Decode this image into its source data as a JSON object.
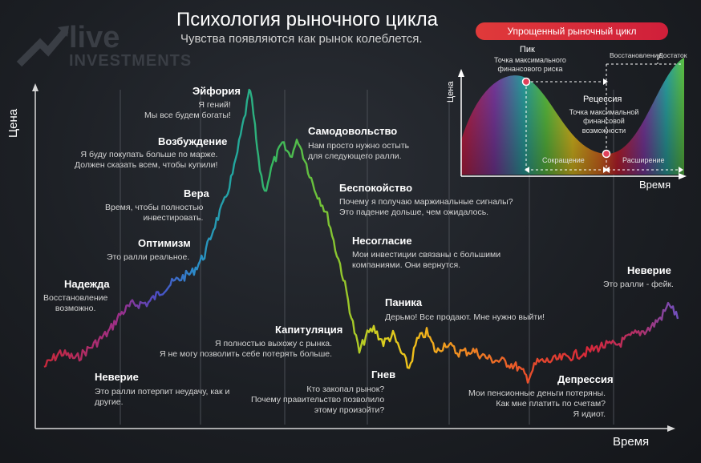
{
  "header": {
    "title": "Психология рыночного цикла",
    "subtitle": "Чувства появляются как рынок колеблется."
  },
  "brand": {
    "line1": "live",
    "line2": "INVESTMENTS"
  },
  "axes": {
    "y_label": "Цена",
    "x_label": "Время"
  },
  "stages": [
    {
      "name": "Неверие",
      "quote": "Это ралли потерпит неудачу, как и\nдругие."
    },
    {
      "name": "Надежда",
      "quote": "Восстановление\nвозможно."
    },
    {
      "name": "Оптимизм",
      "quote": "Это ралли реальное."
    },
    {
      "name": "Вера",
      "quote": "Время, чтобы полностью\nинвестировать."
    },
    {
      "name": "Возбуждение",
      "quote": "Я буду покупать больше по марже.\nДолжен сказать всем, чтобы купили!"
    },
    {
      "name": "Эйфория",
      "quote": "Я гений!\nМы все будем богаты!"
    },
    {
      "name": "Самодовольство",
      "quote": "Нам просто нужно остыть\nдля следующего ралли."
    },
    {
      "name": "Беспокойство",
      "quote": "Почему я получаю маржинальные сигналы?\nЭто падение дольше, чем ожидалось."
    },
    {
      "name": "Несогласие",
      "quote": "Мои инвестиции связаны с большими\nкомпаниями. Они вернутся."
    },
    {
      "name": "Паника",
      "quote": "Дерьмо! Все продают. Мне нужно выйти!"
    },
    {
      "name": "Капитуляция",
      "quote": "Я полностью выхожу с рынка.\nЯ не могу позволить себе потерять больше."
    },
    {
      "name": "Гнев",
      "quote": "Кто закопал рынок?\nПочему правительство позволило\nэтому произойти?"
    },
    {
      "name": "Депрессия",
      "quote": "Мои пенсионные деньги потеряны.\nКак мне платить по счетам?\nЯ идиот."
    },
    {
      "name": "Неверие",
      "quote": "Это ралли - фейк."
    }
  ],
  "inset": {
    "title": "Упрощенный рыночный цикл",
    "y_label": "Цена",
    "x_label": "Время",
    "peak": {
      "name": "Пик",
      "desc": "Точка максимального\nфинансового риска"
    },
    "recession": {
      "name": "Рецессия",
      "desc": "Точка максимальной\nфинансовой\nвозможности"
    },
    "recovery": "Восстановление",
    "prosperity": "Достаток",
    "contraction": "Сокращение",
    "expansion": "Расширение"
  },
  "colors": {
    "gradient": [
      "#c0203a",
      "#9b2f8a",
      "#3a57c8",
      "#2b8dc8",
      "#2aa88a",
      "#3fc04a",
      "#a6cf2a",
      "#e8d21a",
      "#f0a21a",
      "#e8602a",
      "#d8302a",
      "#c0203a"
    ],
    "accent_red": "#e03a3a",
    "marker": "#e0405a"
  }
}
